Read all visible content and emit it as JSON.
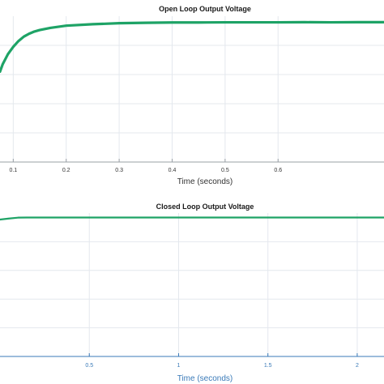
{
  "colors": {
    "series": "#1ea366",
    "grid": "#e4e8ee",
    "axis": "#9aa0a6",
    "bottom_axis_accent": "#3a7ab8"
  },
  "chart_data": [
    {
      "type": "line",
      "title": "Open Loop Output Voltage",
      "xlabel": "Time (seconds)",
      "ylabel": "",
      "xlim": [
        0.075,
        0.8
      ],
      "ylim": [
        0,
        1.0
      ],
      "x_ticks": [
        "0.1",
        "0.2",
        "0.3",
        "0.4",
        "0.5",
        "0.6"
      ],
      "x_tick_values": [
        0.1,
        0.2,
        0.3,
        0.4,
        0.5,
        0.6
      ],
      "y_tick_values": [
        0.2,
        0.4,
        0.6,
        0.8
      ],
      "grid": true,
      "series": [
        {
          "x": [
            0.075,
            0.08,
            0.09,
            0.1,
            0.11,
            0.12,
            0.13,
            0.14,
            0.15,
            0.17,
            0.2,
            0.25,
            0.3,
            0.35,
            0.4,
            0.45,
            0.5,
            0.55,
            0.6,
            0.65,
            0.7,
            0.75,
            0.8
          ],
          "y": [
            0.62,
            0.67,
            0.74,
            0.79,
            0.83,
            0.86,
            0.88,
            0.895,
            0.905,
            0.92,
            0.935,
            0.945,
            0.952,
            0.955,
            0.957,
            0.957,
            0.958,
            0.958,
            0.958,
            0.959,
            0.958,
            0.959,
            0.959
          ]
        }
      ]
    },
    {
      "type": "line",
      "title": "Closed Loop Output Voltage",
      "xlabel": "Time (seconds)",
      "ylabel": "",
      "xlim": [
        0.0,
        2.15
      ],
      "ylim": [
        0,
        1.0
      ],
      "x_ticks": [
        "0.5",
        "1",
        "1.5",
        "2"
      ],
      "x_tick_values": [
        0.5,
        1.0,
        1.5,
        2.0
      ],
      "y_tick_values": [
        0.2,
        0.4,
        0.6,
        0.8
      ],
      "grid": true,
      "series": [
        {
          "x": [
            0.0,
            0.05,
            0.1,
            0.15,
            0.2,
            0.5,
            1.0,
            1.5,
            2.0,
            2.15
          ],
          "y": [
            0.955,
            0.962,
            0.968,
            0.969,
            0.969,
            0.969,
            0.969,
            0.969,
            0.969,
            0.969
          ]
        }
      ]
    }
  ]
}
